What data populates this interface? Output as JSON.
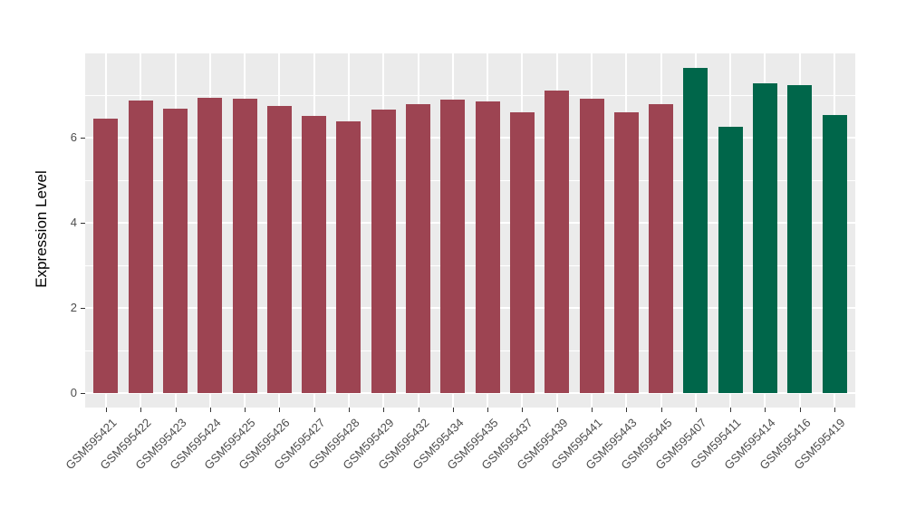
{
  "chart_data": {
    "type": "bar",
    "ylabel": "Expression Level",
    "xlabel": "",
    "categories": [
      "GSM595421",
      "GSM595422",
      "GSM595423",
      "GSM595424",
      "GSM595425",
      "GSM595426",
      "GSM595427",
      "GSM595428",
      "GSM595429",
      "GSM595432",
      "GSM595434",
      "GSM595435",
      "GSM595437",
      "GSM595439",
      "GSM595441",
      "GSM595443",
      "GSM595445",
      "GSM595407",
      "GSM595411",
      "GSM595414",
      "GSM595416",
      "GSM595419"
    ],
    "values": [
      6.44,
      6.87,
      6.68,
      6.94,
      6.91,
      6.74,
      6.5,
      6.38,
      6.66,
      6.78,
      6.9,
      6.84,
      6.6,
      7.11,
      6.92,
      6.6,
      6.78,
      7.63,
      6.26,
      7.28,
      7.23,
      6.53
    ],
    "groups": [
      "group1",
      "group1",
      "group1",
      "group1",
      "group1",
      "group1",
      "group1",
      "group1",
      "group1",
      "group1",
      "group1",
      "group1",
      "group1",
      "group1",
      "group1",
      "group1",
      "group1",
      "group2",
      "group2",
      "group2",
      "group2",
      "group2"
    ],
    "group_colors": {
      "group1": "#9D4452",
      "group2": "#00664A"
    },
    "yticks": [
      0,
      2,
      4,
      6
    ],
    "grid_major": [
      0,
      2,
      4,
      6,
      8
    ],
    "grid_minor": [
      1,
      3,
      5,
      7
    ],
    "ylim": [
      -0.34,
      8.02
    ],
    "bar_width_fraction": 0.7,
    "panel_background": "#EBEBEB",
    "gridline_color": "#FFFFFF",
    "tick_label_color": "#4D4D4D",
    "axis_title_color": "#000000",
    "legend_position": "none",
    "grid": "on"
  }
}
